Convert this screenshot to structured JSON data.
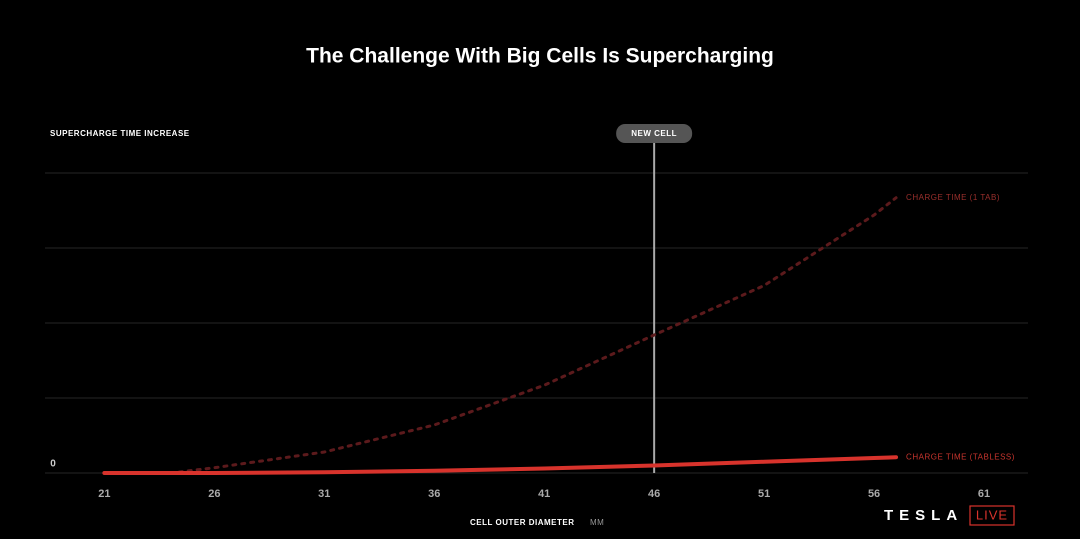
{
  "chart_data": {
    "type": "line",
    "title": "The Challenge With Big Cells Is Supercharging",
    "y_label": "SUPERCHARGE TIME INCREASE",
    "x_label": "CELL OUTER DIAMETER",
    "x_unit": "MM",
    "xlim": [
      18.3,
      63
    ],
    "xticks": [
      21,
      26,
      31,
      36,
      41,
      46,
      51,
      56,
      61
    ],
    "ylim": [
      0,
      4
    ],
    "yticks": [
      0,
      {
        "value": 1,
        "label": null
      },
      {
        "value": 2,
        "label": null
      },
      {
        "value": 3,
        "label": null
      },
      {
        "value": 4,
        "label": null
      }
    ],
    "grid": true,
    "series": [
      {
        "name": "CHARGE TIME (1 TAB)",
        "color": "#5c1a1c",
        "label_color": "#9a2f2c",
        "dash": true,
        "x": [
          24,
          26,
          31,
          36,
          41,
          46,
          51,
          56,
          57
        ],
        "values": [
          0,
          0.07,
          0.28,
          0.64,
          1.17,
          1.84,
          2.5,
          3.44,
          3.67
        ]
      },
      {
        "name": "CHARGE TIME (TABLESS)",
        "color": "#d8332c",
        "label_color": "#c8352e",
        "dash": false,
        "x": [
          21,
          26,
          31,
          36,
          41,
          46,
          51,
          56,
          57
        ],
        "values": [
          0,
          0,
          0.01,
          0.03,
          0.06,
          0.1,
          0.15,
          0.2,
          0.21
        ]
      }
    ],
    "marker": {
      "text": "NEW CELL",
      "x": 46
    },
    "logo": {
      "text": "TESLA",
      "badge": "LIVE"
    }
  }
}
